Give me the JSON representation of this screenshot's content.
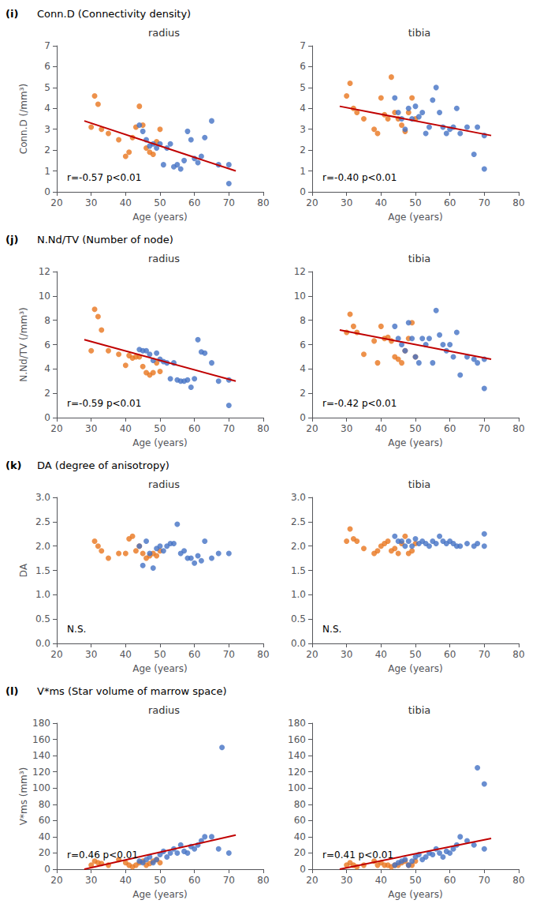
{
  "chart_data": [
    {
      "type": "scatter",
      "panel_label": "(i)",
      "panel_title": "Conn.D (Connectivity density)",
      "title": "radius",
      "xlabel": "Age (years)",
      "ylabel": "Conn.D (/mm³)",
      "annotation": "r=-0.57 p<0.01",
      "xlim": [
        20,
        80
      ],
      "xticks": [
        20,
        30,
        40,
        50,
        60,
        70,
        80
      ],
      "ylim": [
        0,
        7
      ],
      "yticks": [
        0,
        1,
        2,
        3,
        4,
        5,
        6,
        7
      ],
      "grid": false,
      "series": [
        {
          "type": "scatter",
          "color": "#E8761E",
          "x": [
            30,
            31,
            32,
            33,
            35,
            38,
            40,
            41,
            42,
            43,
            44,
            45,
            46,
            47,
            48,
            49,
            50
          ],
          "values": [
            3.1,
            4.6,
            4.2,
            3.0,
            2.8,
            2.5,
            1.7,
            1.9,
            2.6,
            3.1,
            4.1,
            3.2,
            2.1,
            1.9,
            1.8,
            2.4,
            3.0
          ]
        },
        {
          "type": "scatter",
          "color": "#4472C4",
          "x": [
            44,
            45,
            46,
            47,
            48,
            49,
            50,
            51,
            52,
            53,
            54,
            55,
            56,
            57,
            58,
            59,
            60,
            61,
            62,
            63,
            65,
            67,
            70,
            70
          ],
          "values": [
            3.2,
            2.9,
            2.5,
            2.2,
            2.3,
            2.1,
            2.3,
            1.3,
            2.1,
            2.3,
            1.2,
            1.3,
            1.1,
            1.5,
            2.9,
            2.5,
            1.6,
            1.4,
            1.7,
            2.6,
            3.4,
            1.3,
            1.3,
            0.4
          ]
        },
        {
          "type": "line",
          "color": "#C00000",
          "x": [
            28,
            72
          ],
          "values": [
            3.4,
            1.0
          ]
        }
      ]
    },
    {
      "type": "scatter",
      "title": "tibia",
      "xlabel": "Age (years)",
      "annotation": "r=-0.40 p<0.01",
      "xlim": [
        20,
        80
      ],
      "xticks": [
        20,
        30,
        40,
        50,
        60,
        70,
        80
      ],
      "ylim": [
        0,
        7
      ],
      "yticks": [
        0,
        1,
        2,
        3,
        4,
        5,
        6,
        7
      ],
      "grid": false,
      "series": [
        {
          "type": "scatter",
          "color": "#E8761E",
          "x": [
            30,
            31,
            32,
            33,
            35,
            38,
            39,
            40,
            41,
            42,
            43,
            44,
            45,
            46,
            47,
            48,
            49,
            50
          ],
          "values": [
            4.6,
            5.2,
            4.0,
            3.8,
            3.5,
            3.0,
            2.8,
            4.5,
            3.7,
            3.5,
            5.5,
            3.8,
            3.5,
            3.2,
            2.9,
            3.8,
            4.5,
            3.5
          ]
        },
        {
          "type": "scatter",
          "color": "#4472C4",
          "x": [
            44,
            45,
            46,
            47,
            48,
            49,
            50,
            51,
            52,
            53,
            54,
            55,
            56,
            57,
            58,
            59,
            60,
            61,
            62,
            63,
            65,
            67,
            68,
            70,
            70
          ],
          "values": [
            4.5,
            3.8,
            3.5,
            3.0,
            4.0,
            3.5,
            4.1,
            3.6,
            3.8,
            2.8,
            3.1,
            4.4,
            5.0,
            3.8,
            3.1,
            2.8,
            3.0,
            3.1,
            4.0,
            2.8,
            3.1,
            1.8,
            3.1,
            2.7,
            1.1
          ]
        },
        {
          "type": "line",
          "color": "#C00000",
          "x": [
            28,
            72
          ],
          "values": [
            4.1,
            2.7
          ]
        }
      ]
    },
    {
      "type": "scatter",
      "panel_label": "(j)",
      "panel_title": "N.Nd/TV (Number of node)",
      "title": "radius",
      "xlabel": "Age (years)",
      "ylabel": "N.Nd/TV (/mm³)",
      "annotation": "r=-0.59 p<0.01",
      "xlim": [
        20,
        80
      ],
      "xticks": [
        20,
        30,
        40,
        50,
        60,
        70,
        80
      ],
      "ylim": [
        0,
        12
      ],
      "yticks": [
        0,
        2,
        4,
        6,
        8,
        10,
        12
      ],
      "grid": false,
      "series": [
        {
          "type": "scatter",
          "color": "#E8761E",
          "x": [
            30,
            31,
            32,
            33,
            35,
            38,
            40,
            41,
            42,
            43,
            44,
            45,
            46,
            47,
            48,
            49,
            50
          ],
          "values": [
            5.5,
            8.9,
            8.3,
            7.2,
            5.5,
            5.2,
            4.3,
            5.1,
            4.9,
            5.0,
            5.0,
            4.2,
            3.7,
            3.5,
            3.7,
            4.5,
            3.8
          ]
        },
        {
          "type": "scatter",
          "color": "#4472C4",
          "x": [
            44,
            45,
            46,
            47,
            48,
            49,
            50,
            51,
            52,
            53,
            54,
            55,
            56,
            57,
            58,
            59,
            60,
            61,
            62,
            63,
            65,
            67,
            70,
            70
          ],
          "values": [
            5.6,
            5.5,
            5.5,
            5.2,
            4.7,
            5.3,
            4.8,
            4.6,
            4.5,
            3.2,
            4.5,
            3.1,
            3.0,
            3.0,
            3.1,
            2.5,
            3.2,
            6.4,
            5.4,
            5.3,
            4.5,
            3.0,
            3.1,
            1.0
          ]
        },
        {
          "type": "line",
          "color": "#C00000",
          "x": [
            28,
            72
          ],
          "values": [
            6.4,
            3.0
          ]
        }
      ]
    },
    {
      "type": "scatter",
      "title": "tibia",
      "xlabel": "Age (years)",
      "annotation": "r=-0.42 p<0.01",
      "xlim": [
        20,
        80
      ],
      "xticks": [
        20,
        30,
        40,
        50,
        60,
        70,
        80
      ],
      "ylim": [
        0,
        12
      ],
      "yticks": [
        0,
        2,
        4,
        6,
        8,
        10,
        12
      ],
      "grid": false,
      "series": [
        {
          "type": "scatter",
          "color": "#E8761E",
          "x": [
            30,
            31,
            32,
            33,
            35,
            38,
            39,
            40,
            41,
            42,
            43,
            44,
            45,
            46,
            47,
            48,
            49,
            50
          ],
          "values": [
            7.0,
            8.5,
            7.5,
            7.0,
            5.2,
            6.3,
            4.5,
            7.5,
            6.5,
            6.6,
            6.3,
            5.0,
            4.8,
            4.5,
            5.5,
            6.5,
            7.8,
            5.0
          ]
        },
        {
          "type": "scatter",
          "color": "#4472C4",
          "x": [
            44,
            45,
            46,
            47,
            48,
            49,
            50,
            51,
            52,
            53,
            54,
            55,
            56,
            57,
            58,
            59,
            60,
            61,
            62,
            63,
            65,
            67,
            68,
            70,
            70
          ],
          "values": [
            7.5,
            6.5,
            6.0,
            5.5,
            7.8,
            6.5,
            5.0,
            4.5,
            6.5,
            6.0,
            6.5,
            4.5,
            8.8,
            6.8,
            6.0,
            5.5,
            6.0,
            5.0,
            7.0,
            3.5,
            5.0,
            4.8,
            4.5,
            4.8,
            2.4
          ]
        },
        {
          "type": "line",
          "color": "#C00000",
          "x": [
            28,
            72
          ],
          "values": [
            7.2,
            4.8
          ]
        }
      ]
    },
    {
      "type": "scatter",
      "panel_label": "(k)",
      "panel_title": "DA (degree of anisotropy)",
      "title": "radius",
      "xlabel": "Age (years)",
      "ylabel": "DA",
      "annotation": "N.S.",
      "xlim": [
        20,
        80
      ],
      "xticks": [
        20,
        30,
        40,
        50,
        60,
        70,
        80
      ],
      "ylim": [
        0,
        3
      ],
      "yticks": [
        {
          "value": 0,
          "label": "0.0"
        },
        {
          "value": 0.5,
          "label": "0.5"
        },
        {
          "value": 1,
          "label": "1.0"
        },
        {
          "value": 1.5,
          "label": "1.5"
        },
        {
          "value": 2,
          "label": "2.0"
        },
        {
          "value": 2.5,
          "label": "2.5"
        },
        {
          "value": 3,
          "label": "3.0"
        }
      ],
      "grid": false,
      "series": [
        {
          "type": "scatter",
          "color": "#E8761E",
          "x": [
            31,
            32,
            33,
            35,
            38,
            40,
            41,
            42,
            43,
            44,
            45,
            46,
            47,
            48,
            49,
            50
          ],
          "values": [
            2.1,
            2.0,
            1.9,
            1.75,
            1.85,
            1.85,
            2.15,
            2.2,
            1.9,
            2.0,
            1.85,
            1.75,
            1.8,
            1.85,
            1.8,
            1.9
          ]
        },
        {
          "type": "scatter",
          "color": "#4472C4",
          "x": [
            44,
            45,
            46,
            47,
            48,
            49,
            50,
            51,
            52,
            53,
            54,
            55,
            56,
            57,
            58,
            59,
            60,
            61,
            62,
            63,
            65,
            67,
            70
          ],
          "values": [
            2.0,
            1.6,
            2.1,
            1.85,
            1.55,
            1.95,
            2.0,
            1.9,
            2.0,
            2.05,
            2.05,
            2.45,
            1.85,
            1.9,
            1.75,
            1.75,
            1.65,
            1.8,
            1.7,
            2.1,
            1.75,
            1.85,
            1.85
          ]
        }
      ]
    },
    {
      "type": "scatter",
      "title": "tibia",
      "xlabel": "Age (years)",
      "annotation": "N.S.",
      "xlim": [
        20,
        80
      ],
      "xticks": [
        20,
        30,
        40,
        50,
        60,
        70,
        80
      ],
      "ylim": [
        0,
        3
      ],
      "yticks": [
        {
          "value": 0,
          "label": "0.0"
        },
        {
          "value": 0.5,
          "label": "0.5"
        },
        {
          "value": 1,
          "label": "1.0"
        },
        {
          "value": 1.5,
          "label": "1.5"
        },
        {
          "value": 2,
          "label": "2.0"
        },
        {
          "value": 2.5,
          "label": "2.5"
        },
        {
          "value": 3,
          "label": "3.0"
        }
      ],
      "grid": false,
      "series": [
        {
          "type": "scatter",
          "color": "#E8761E",
          "x": [
            30,
            31,
            32,
            33,
            35,
            38,
            39,
            40,
            41,
            42,
            43,
            44,
            45,
            46,
            47,
            48,
            49,
            50
          ],
          "values": [
            2.1,
            2.35,
            2.15,
            2.1,
            1.95,
            1.85,
            1.9,
            2.0,
            2.05,
            2.1,
            1.9,
            1.95,
            1.85,
            2.05,
            2.2,
            1.85,
            1.9,
            2.05
          ]
        },
        {
          "type": "scatter",
          "color": "#4472C4",
          "x": [
            44,
            45,
            46,
            47,
            48,
            49,
            50,
            51,
            52,
            53,
            54,
            55,
            56,
            57,
            58,
            59,
            60,
            61,
            62,
            63,
            65,
            67,
            68,
            70,
            70
          ],
          "values": [
            2.2,
            2.1,
            2.1,
            2.0,
            2.1,
            2.0,
            2.15,
            2.05,
            2.1,
            2.05,
            2.0,
            2.1,
            2.05,
            2.2,
            2.1,
            2.05,
            2.1,
            2.05,
            2.0,
            2.0,
            2.05,
            2.0,
            2.05,
            2.0,
            2.25
          ]
        }
      ]
    },
    {
      "type": "scatter",
      "panel_label": "(l)",
      "panel_title": "V*ms (Star volume of marrow space)",
      "title": "radius",
      "xlabel": "Age (years)",
      "ylabel": "V*ms (mm³)",
      "annotation": "r=0.46 p<0.01",
      "xlim": [
        20,
        80
      ],
      "xticks": [
        20,
        30,
        40,
        50,
        60,
        70,
        80
      ],
      "ylim": [
        0,
        180
      ],
      "yticks": [
        0,
        20,
        40,
        60,
        80,
        100,
        120,
        140,
        160,
        180
      ],
      "grid": false,
      "series": [
        {
          "type": "scatter",
          "color": "#E8761E",
          "x": [
            30,
            31,
            32,
            33,
            35,
            38,
            40,
            41,
            42,
            43,
            44,
            45,
            46,
            47,
            48,
            49,
            50
          ],
          "values": [
            5,
            10,
            8,
            7,
            5,
            12,
            8,
            5,
            3,
            5,
            8,
            10,
            5,
            7,
            10,
            12,
            8
          ]
        },
        {
          "type": "scatter",
          "color": "#4472C4",
          "x": [
            44,
            45,
            46,
            47,
            48,
            49,
            50,
            51,
            52,
            53,
            54,
            55,
            56,
            57,
            58,
            59,
            60,
            61,
            62,
            63,
            65,
            67,
            68,
            70
          ],
          "values": [
            10,
            8,
            12,
            15,
            8,
            12,
            18,
            22,
            15,
            20,
            25,
            20,
            30,
            22,
            20,
            28,
            25,
            30,
            35,
            40,
            40,
            25,
            150,
            20
          ]
        },
        {
          "type": "line",
          "color": "#C00000",
          "x": [
            28,
            72
          ],
          "values": [
            0,
            42
          ]
        }
      ]
    },
    {
      "type": "scatter",
      "title": "tibia",
      "xlabel": "Age (years)",
      "annotation": "r=0.41 p<0.01",
      "xlim": [
        20,
        80
      ],
      "xticks": [
        20,
        30,
        40,
        50,
        60,
        70,
        80
      ],
      "ylim": [
        0,
        180
      ],
      "yticks": [
        0,
        20,
        40,
        60,
        80,
        100,
        120,
        140,
        160,
        180
      ],
      "grid": false,
      "series": [
        {
          "type": "scatter",
          "color": "#E8761E",
          "x": [
            30,
            31,
            32,
            33,
            35,
            38,
            39,
            40,
            41,
            42,
            43,
            44,
            45,
            46,
            47,
            48,
            49,
            50
          ],
          "values": [
            5,
            8,
            5,
            3,
            5,
            10,
            5,
            8,
            5,
            5,
            3,
            5,
            5,
            8,
            10,
            5,
            5,
            10
          ]
        },
        {
          "type": "scatter",
          "color": "#4472C4",
          "x": [
            44,
            45,
            46,
            47,
            48,
            49,
            50,
            51,
            52,
            53,
            54,
            55,
            56,
            57,
            58,
            59,
            60,
            61,
            62,
            63,
            65,
            67,
            68,
            70,
            70
          ],
          "values": [
            5,
            8,
            10,
            12,
            5,
            10,
            15,
            18,
            12,
            15,
            20,
            18,
            25,
            20,
            15,
            22,
            20,
            25,
            30,
            40,
            35,
            30,
            125,
            105,
            25
          ]
        },
        {
          "type": "line",
          "color": "#C00000",
          "x": [
            28,
            72
          ],
          "values": [
            0,
            38
          ]
        }
      ]
    }
  ]
}
